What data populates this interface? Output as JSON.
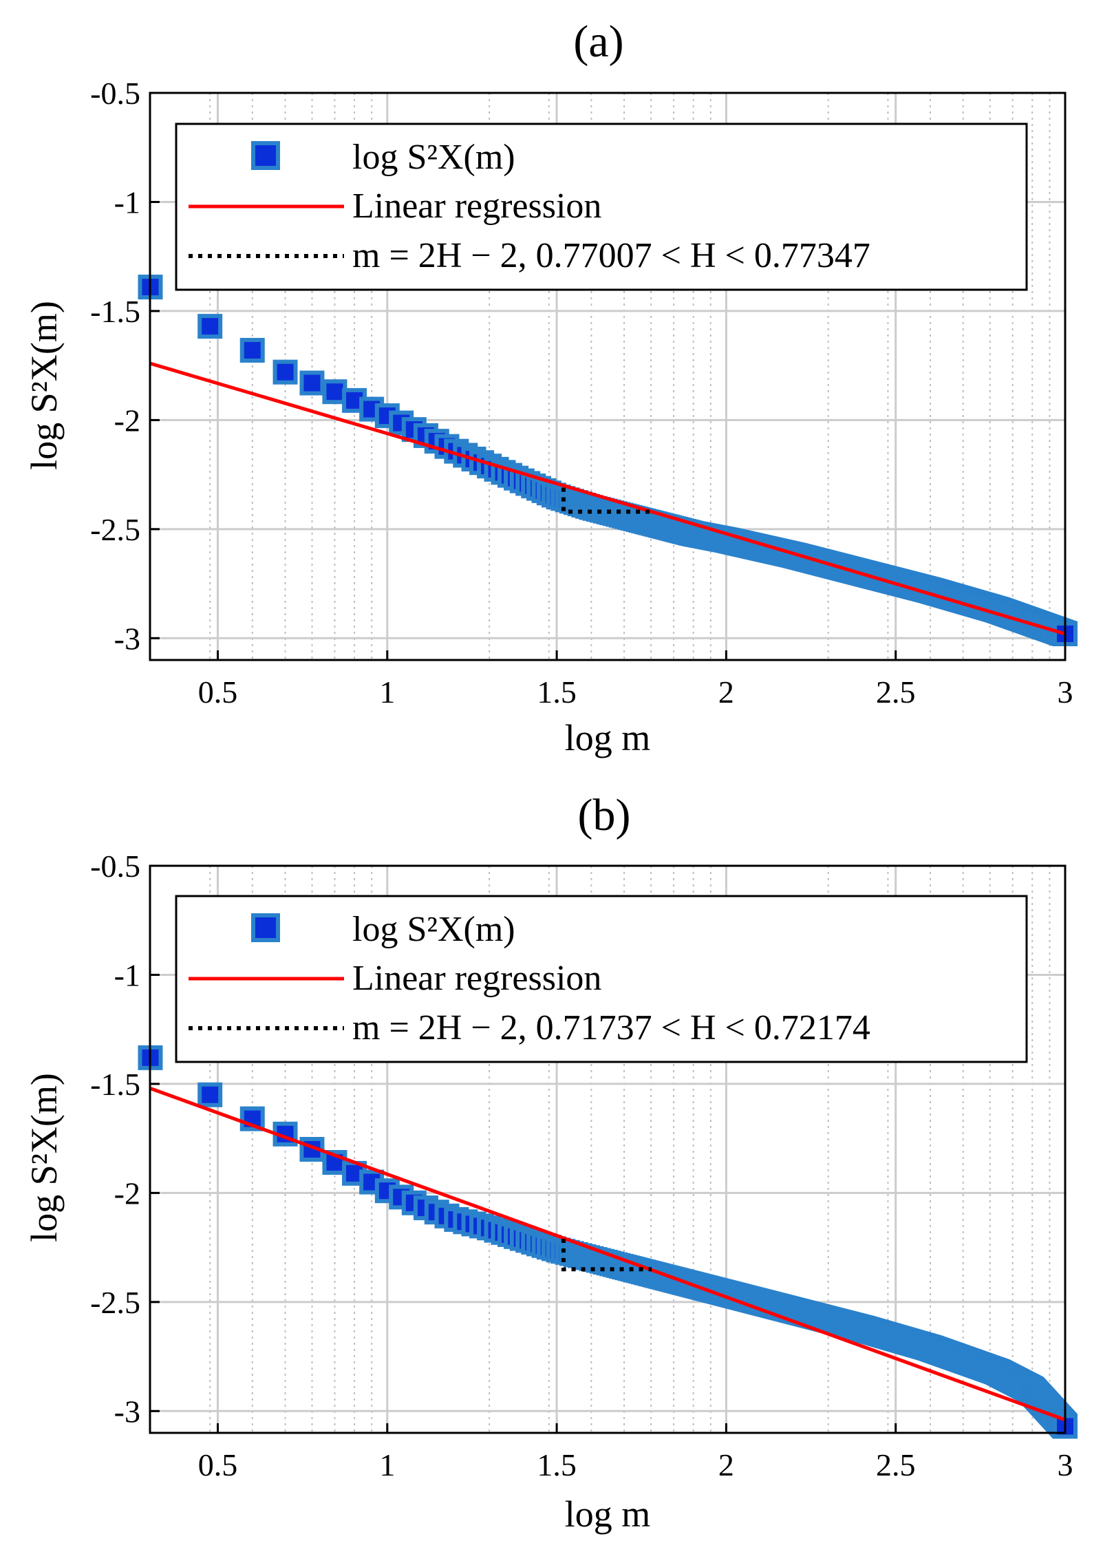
{
  "colors": {
    "marker_fill": "#0a2fd8",
    "marker_edge": "#2b82cc",
    "regression": "#ff0000",
    "reference": "#000000",
    "grid_major": "#cccccc",
    "grid_minor": "#bdbdbd",
    "frame": "#000000"
  },
  "chart_data": [
    {
      "type": "scatter",
      "panel_id": "a",
      "title": "(a)",
      "xlabel": "log m",
      "ylabel": "log S²X(m)",
      "xlim": [
        0.3,
        3
      ],
      "ylim": [
        -3.1,
        -0.5
      ],
      "xticks": [
        0.5,
        1,
        1.5,
        2,
        2.5,
        3
      ],
      "xtick_labels": [
        "0.5",
        "1",
        "1.5",
        "2",
        "2.5",
        "3"
      ],
      "yticks": [
        -0.5,
        -1,
        -1.5,
        -2,
        -2.5,
        -3
      ],
      "ytick_labels": [
        "-0.5",
        "-1",
        "-1.5",
        "-2",
        "-2.5",
        "-3"
      ],
      "grid": true,
      "legend_position": "top",
      "legend": {
        "series_label": "log S²X(m)",
        "regression_label": "Linear regression",
        "reference_label": "m = 2H − 2, 0.77007 < H < 0.77347"
      },
      "series": [
        {
          "name": "log S²X(m)",
          "anchors_x": [
            0.301,
            0.477,
            0.602,
            0.699,
            0.778,
            0.845,
            0.903,
            0.954,
            1.0,
            1.1,
            1.2,
            1.3,
            1.4,
            1.5,
            1.6,
            1.7,
            1.8,
            1.9,
            2.0,
            2.2,
            2.4,
            2.6,
            2.8,
            3.0
          ],
          "anchors_y": [
            -1.39,
            -1.57,
            -1.68,
            -1.78,
            -1.83,
            -1.87,
            -1.91,
            -1.95,
            -1.98,
            -2.06,
            -2.14,
            -2.21,
            -2.28,
            -2.35,
            -2.4,
            -2.44,
            -2.48,
            -2.52,
            -2.55,
            -2.62,
            -2.7,
            -2.78,
            -2.87,
            -2.98
          ]
        }
      ],
      "regression": {
        "x": [
          0.3,
          3.0
        ],
        "y": [
          -1.74,
          -2.98
        ]
      },
      "reference": {
        "corner_x": 1.52,
        "top_y": -2.31,
        "bottom_y": -2.42,
        "end_x": 1.78
      }
    },
    {
      "type": "scatter",
      "panel_id": "b",
      "title": "(b)",
      "xlabel": "log m",
      "ylabel": "log S²X(m)",
      "xlim": [
        0.3,
        3
      ],
      "ylim": [
        -3.1,
        -0.5
      ],
      "xticks": [
        0.5,
        1,
        1.5,
        2,
        2.5,
        3
      ],
      "xtick_labels": [
        "0.5",
        "1",
        "1.5",
        "2",
        "2.5",
        "3"
      ],
      "yticks": [
        -0.5,
        -1,
        -1.5,
        -2,
        -2.5,
        -3
      ],
      "ytick_labels": [
        "-0.5",
        "-1",
        "-1.5",
        "-2",
        "-2.5",
        "-3"
      ],
      "grid": true,
      "legend_position": "top",
      "legend": {
        "series_label": "log S²X(m)",
        "regression_label": "Linear regression",
        "reference_label": "m = 2H − 2, 0.71737 < H < 0.72174"
      },
      "series": [
        {
          "name": "log S²X(m)",
          "anchors_x": [
            0.301,
            0.477,
            0.602,
            0.699,
            0.778,
            0.845,
            0.903,
            0.954,
            1.0,
            1.1,
            1.2,
            1.3,
            1.4,
            1.5,
            1.6,
            1.8,
            2.0,
            2.2,
            2.4,
            2.6,
            2.8,
            2.9,
            3.0
          ],
          "anchors_y": [
            -1.38,
            -1.55,
            -1.66,
            -1.73,
            -1.8,
            -1.86,
            -1.91,
            -1.95,
            -1.99,
            -2.06,
            -2.12,
            -2.16,
            -2.21,
            -2.26,
            -2.3,
            -2.38,
            -2.46,
            -2.54,
            -2.62,
            -2.71,
            -2.82,
            -2.9,
            -3.07
          ]
        }
      ],
      "regression": {
        "x": [
          0.3,
          3.0
        ],
        "y": [
          -1.52,
          -3.04
        ]
      },
      "reference": {
        "corner_x": 1.52,
        "top_y": -2.21,
        "bottom_y": -2.35,
        "end_x": 1.78
      }
    }
  ]
}
